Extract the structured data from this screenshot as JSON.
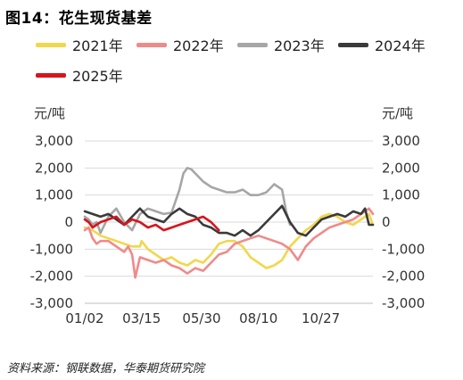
{
  "figure": {
    "title": "图14：花生现货基差",
    "source": "资料来源：钢联数据，华泰期货研究院"
  },
  "chart_data": {
    "type": "line",
    "title": "图14：花生现货基差",
    "y_unit_left": "元/吨",
    "y_unit_right": "元/吨",
    "ylim": [
      -3000,
      3000
    ],
    "y_ticks": [
      -3000,
      -2000,
      -1000,
      0,
      1000,
      2000,
      3000
    ],
    "y_tick_labels": [
      "-3,000",
      "-2,000",
      "-1,000",
      "0",
      "1,000",
      "2,000",
      "3,000"
    ],
    "xlim": [
      0,
      365
    ],
    "x_ticks": [
      0,
      72,
      148,
      220,
      299
    ],
    "x_tick_labels": [
      "01/02",
      "03/15",
      "05/30",
      "08/10",
      "10/27"
    ],
    "grid": "horizontal",
    "legend_position": "top",
    "series": [
      {
        "name": "2021年",
        "color": "#F2D74B",
        "x": [
          0,
          10,
          20,
          30,
          40,
          50,
          60,
          70,
          72,
          80,
          90,
          100,
          110,
          120,
          130,
          140,
          150,
          160,
          170,
          180,
          190,
          200,
          210,
          220,
          230,
          240,
          250,
          260,
          270,
          280,
          290,
          300,
          310,
          320,
          330,
          340,
          350,
          360,
          365
        ],
        "y": [
          -200,
          -300,
          -500,
          -600,
          -700,
          -800,
          -900,
          -900,
          -700,
          -1000,
          -1200,
          -1400,
          -1300,
          -1500,
          -1600,
          -1400,
          -1500,
          -1200,
          -800,
          -700,
          -700,
          -900,
          -1300,
          -1500,
          -1700,
          -1600,
          -1400,
          -900,
          -600,
          -300,
          -100,
          200,
          300,
          200,
          0,
          -100,
          100,
          300,
          -100
        ]
      },
      {
        "name": "2022年",
        "color": "#F08A8A",
        "x": [
          0,
          5,
          10,
          15,
          20,
          30,
          40,
          50,
          55,
          60,
          64,
          70,
          80,
          90,
          100,
          110,
          120,
          130,
          140,
          150,
          160,
          170,
          180,
          190,
          200,
          210,
          220,
          230,
          240,
          250,
          260,
          270,
          280,
          290,
          300,
          310,
          320,
          330,
          340,
          350,
          360,
          365
        ],
        "y": [
          -300,
          -200,
          -600,
          -800,
          -700,
          -700,
          -900,
          -1100,
          -900,
          -1200,
          -2050,
          -1300,
          -1400,
          -1500,
          -1400,
          -1600,
          -1700,
          -1900,
          -1700,
          -1800,
          -1500,
          -1200,
          -1100,
          -800,
          -700,
          -600,
          -500,
          -600,
          -700,
          -800,
          -1000,
          -1400,
          -900,
          -600,
          -400,
          -200,
          -100,
          0,
          100,
          300,
          500,
          300
        ]
      },
      {
        "name": "2023年",
        "color": "#A6A6A6",
        "x": [
          0,
          5,
          10,
          15,
          20,
          30,
          40,
          50,
          60,
          70,
          80,
          90,
          100,
          110,
          120,
          125,
          130,
          135,
          140,
          150,
          160,
          170,
          180,
          190,
          200,
          210,
          220,
          230,
          240,
          250,
          255,
          260
        ],
        "y": [
          200,
          100,
          -100,
          0,
          -400,
          200,
          500,
          0,
          -300,
          300,
          500,
          400,
          300,
          350,
          1200,
          1800,
          2000,
          1950,
          1800,
          1500,
          1300,
          1200,
          1100,
          1100,
          1200,
          1000,
          1000,
          1100,
          1400,
          1200,
          400,
          -100
        ]
      },
      {
        "name": "2024年",
        "color": "#3A3A3A",
        "x": [
          0,
          10,
          20,
          30,
          40,
          50,
          60,
          70,
          80,
          90,
          100,
          110,
          120,
          130,
          140,
          150,
          160,
          170,
          180,
          190,
          200,
          210,
          220,
          230,
          240,
          250,
          260,
          270,
          280,
          290,
          300,
          310,
          320,
          330,
          340,
          350,
          355,
          360,
          365
        ],
        "y": [
          400,
          300,
          200,
          300,
          100,
          -100,
          200,
          500,
          200,
          100,
          0,
          300,
          500,
          300,
          200,
          -100,
          -200,
          -400,
          -400,
          -500,
          -300,
          -500,
          -300,
          0,
          300,
          600,
          0,
          -400,
          -500,
          -200,
          100,
          200,
          300,
          200,
          400,
          300,
          500,
          -100,
          -100
        ]
      },
      {
        "name": "2025年",
        "color": "#D7141C",
        "x": [
          0,
          5,
          10,
          20,
          30,
          40,
          50,
          60,
          70,
          80,
          90,
          100,
          110,
          120,
          130,
          140,
          150,
          160,
          170
        ],
        "y": [
          100,
          0,
          -200,
          0,
          100,
          200,
          -100,
          100,
          0,
          -200,
          -100,
          -300,
          -200,
          -100,
          0,
          100,
          200,
          0,
          -300
        ]
      }
    ]
  },
  "colors": {
    "grid": "#D9D9D9",
    "axis": "#BFBFBF"
  }
}
